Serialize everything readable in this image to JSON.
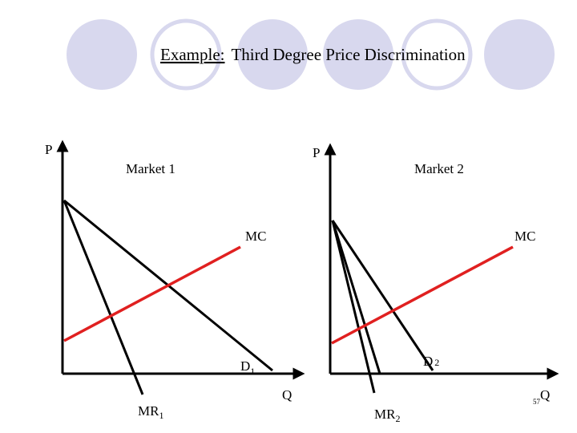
{
  "title": {
    "lead": "Example:",
    "rest": "Third Degree Price Discrimination"
  },
  "left_panel": {
    "price_axis": "P",
    "quantity_axis": "Q",
    "market": "Market 1",
    "mc": "MC",
    "demand": {
      "main": "D",
      "sub": "1"
    },
    "marginal_revenue": {
      "main": "MR",
      "sub": "1"
    }
  },
  "right_panel": {
    "price_axis": "P",
    "quantity_axis": "Q",
    "market": "Market 2",
    "mc": "MC",
    "demand": {
      "main": "D",
      "sub": "2"
    },
    "marginal_revenue": {
      "main": "MR",
      "sub": "2"
    }
  },
  "page_number": "57"
}
